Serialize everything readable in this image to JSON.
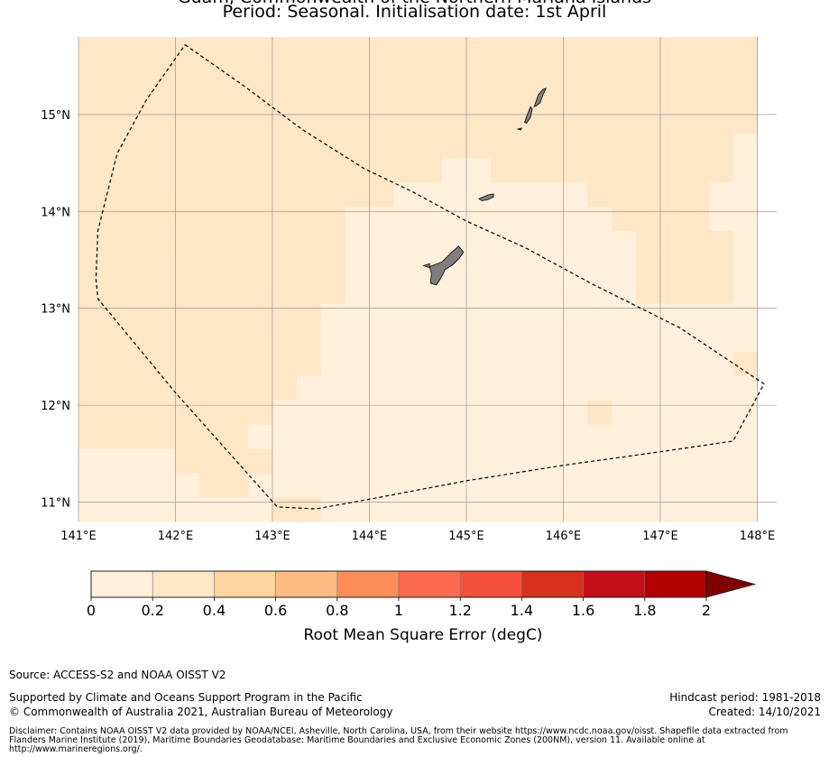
{
  "title_line1": "Guam, Commonwealth of the Northern Mariana Islands",
  "title_line2": "Period: Seasonal. Initialisation date: 1st April",
  "map": {
    "extent": {
      "lon_min": 141.0,
      "lon_max": 148.2,
      "lat_min": 10.8,
      "lat_max": 15.8
    },
    "x_ticks": [
      {
        "lon": 141,
        "label": "141°E"
      },
      {
        "lon": 142,
        "label": "142°E"
      },
      {
        "lon": 143,
        "label": "143°E"
      },
      {
        "lon": 144,
        "label": "144°E"
      },
      {
        "lon": 145,
        "label": "145°E"
      },
      {
        "lon": 146,
        "label": "146°E"
      },
      {
        "lon": 147,
        "label": "147°E"
      },
      {
        "lon": 148,
        "label": "148°E"
      }
    ],
    "y_ticks": [
      {
        "lat": 15,
        "label": "15°N"
      },
      {
        "lat": 14,
        "label": "14°N"
      },
      {
        "lat": 13,
        "label": "13°N"
      },
      {
        "lat": 12,
        "label": "12°N"
      },
      {
        "lat": 11,
        "label": "11°N"
      }
    ],
    "grid": true,
    "land_color": "#7f7f7f",
    "eez_boundary": [
      [
        142.1,
        15.72
      ],
      [
        142.7,
        15.3
      ],
      [
        143.3,
        14.85
      ],
      [
        143.95,
        14.44
      ],
      [
        144.45,
        14.2
      ],
      [
        145.0,
        13.9
      ],
      [
        145.6,
        13.63
      ],
      [
        146.3,
        13.25
      ],
      [
        147.2,
        12.8
      ],
      [
        148.07,
        12.22
      ],
      [
        147.75,
        11.63
      ],
      [
        147.0,
        11.52
      ],
      [
        146.0,
        11.38
      ],
      [
        145.0,
        11.22
      ],
      [
        144.0,
        11.03
      ],
      [
        143.45,
        10.93
      ],
      [
        143.05,
        10.95
      ],
      [
        142.0,
        12.13
      ],
      [
        141.2,
        13.1
      ],
      [
        141.18,
        13.3
      ],
      [
        141.2,
        13.8
      ],
      [
        141.4,
        14.6
      ],
      [
        141.7,
        15.15
      ],
      [
        142.1,
        15.72
      ]
    ],
    "islands": [
      {
        "name": "Guam",
        "outline": [
          [
            144.62,
            13.43
          ],
          [
            144.75,
            13.48
          ],
          [
            144.85,
            13.58
          ],
          [
            144.92,
            13.64
          ],
          [
            144.97,
            13.58
          ],
          [
            144.93,
            13.52
          ],
          [
            144.86,
            13.45
          ],
          [
            144.78,
            13.4
          ],
          [
            144.73,
            13.3
          ],
          [
            144.69,
            13.24
          ],
          [
            144.63,
            13.26
          ],
          [
            144.64,
            13.36
          ]
        ]
      },
      {
        "name": "Guam-west",
        "outline": [
          [
            144.56,
            13.44
          ],
          [
            144.62,
            13.46
          ],
          [
            144.62,
            13.42
          ]
        ]
      },
      {
        "name": "Rota",
        "outline": [
          [
            145.13,
            14.13
          ],
          [
            145.22,
            14.17
          ],
          [
            145.28,
            14.18
          ],
          [
            145.28,
            14.15
          ],
          [
            145.22,
            14.12
          ],
          [
            145.16,
            14.11
          ]
        ]
      },
      {
        "name": "Tinian",
        "outline": [
          [
            145.6,
            14.92
          ],
          [
            145.63,
            15.0
          ],
          [
            145.66,
            15.08
          ],
          [
            145.68,
            15.06
          ],
          [
            145.66,
            14.97
          ],
          [
            145.62,
            14.91
          ]
        ]
      },
      {
        "name": "Saipan",
        "outline": [
          [
            145.7,
            15.08
          ],
          [
            145.74,
            15.2
          ],
          [
            145.79,
            15.26
          ],
          [
            145.82,
            15.27
          ],
          [
            145.79,
            15.2
          ],
          [
            145.76,
            15.12
          ],
          [
            145.72,
            15.09
          ]
        ]
      },
      {
        "name": "Aguijan",
        "outline": [
          [
            145.53,
            14.85
          ],
          [
            145.57,
            14.86
          ],
          [
            145.56,
            14.84
          ]
        ]
      }
    ],
    "rmse_grid": {
      "cell_size_deg": 0.25,
      "lon_start": 141.0,
      "lat_top": 15.8,
      "rows": [
        "1111111111111111111111111111",
        "1111111111111111111111111111",
        "1111111111111111111111111111",
        "1111111111111111111111111111",
        "1111111111111111111111111110",
        "1111111111111110011111111110",
        "1111111111111000000001111100",
        "1111111111100000000000111100",
        "1111111111100000000000011110",
        "1111111111100000000000011110",
        "1111111111100000000000011110",
        "1111111111000000000000000000",
        "1111111111000000000000000000",
        "1111111111000000000000000001",
        "1111111110000000000000000000",
        "1111111100000000000001000000",
        "1111111000000000000000000000",
        "0000111100000000000000000000",
        "0000011000000000000000000000",
        "0000000011000000000000000000",
        "0000000000000000000000000000",
        "0000000000000000000000000000"
      ]
    }
  },
  "colorbar": {
    "label": "Root Mean Square Error (degC)",
    "tick_labels": [
      "0",
      "0.2",
      "0.4",
      "0.6",
      "0.8",
      "1",
      "1.2",
      "1.4",
      "1.6",
      "1.8",
      "2"
    ],
    "colors": [
      "#fff0db",
      "#fee6c7",
      "#fdd49e",
      "#fdbb84",
      "#fc8d59",
      "#fc6b50",
      "#f5503b",
      "#d7301f",
      "#c61019",
      "#b30000",
      "#7f0000"
    ],
    "extend": "max"
  },
  "footer": {
    "source": "Source: ACCESS-S2 and NOAA OISST V2",
    "supported": "Supported by Climate and Oceans Support Program in the Pacific",
    "copyright": "© Commonwealth of Australia 2021, Australian Bureau of Meteorology",
    "hindcast": "Hindcast period: 1981-2018",
    "created": "Created: 14/10/2021",
    "disclaimer": "Disclaimer: Contains NOAA OISST V2 data provided by NOAA/NCEI, Asheville, North Carolina, USA, from their website https://www.ncdc.noaa.gov/oisst. Shapefile data extracted from Flanders Marine Institute (2019), Maritime Boundaries Geodatabase: Maritime Boundaries and Exclusive Economic Zones (200NM), version 11. Available online at http://www.marineregions.org/."
  }
}
